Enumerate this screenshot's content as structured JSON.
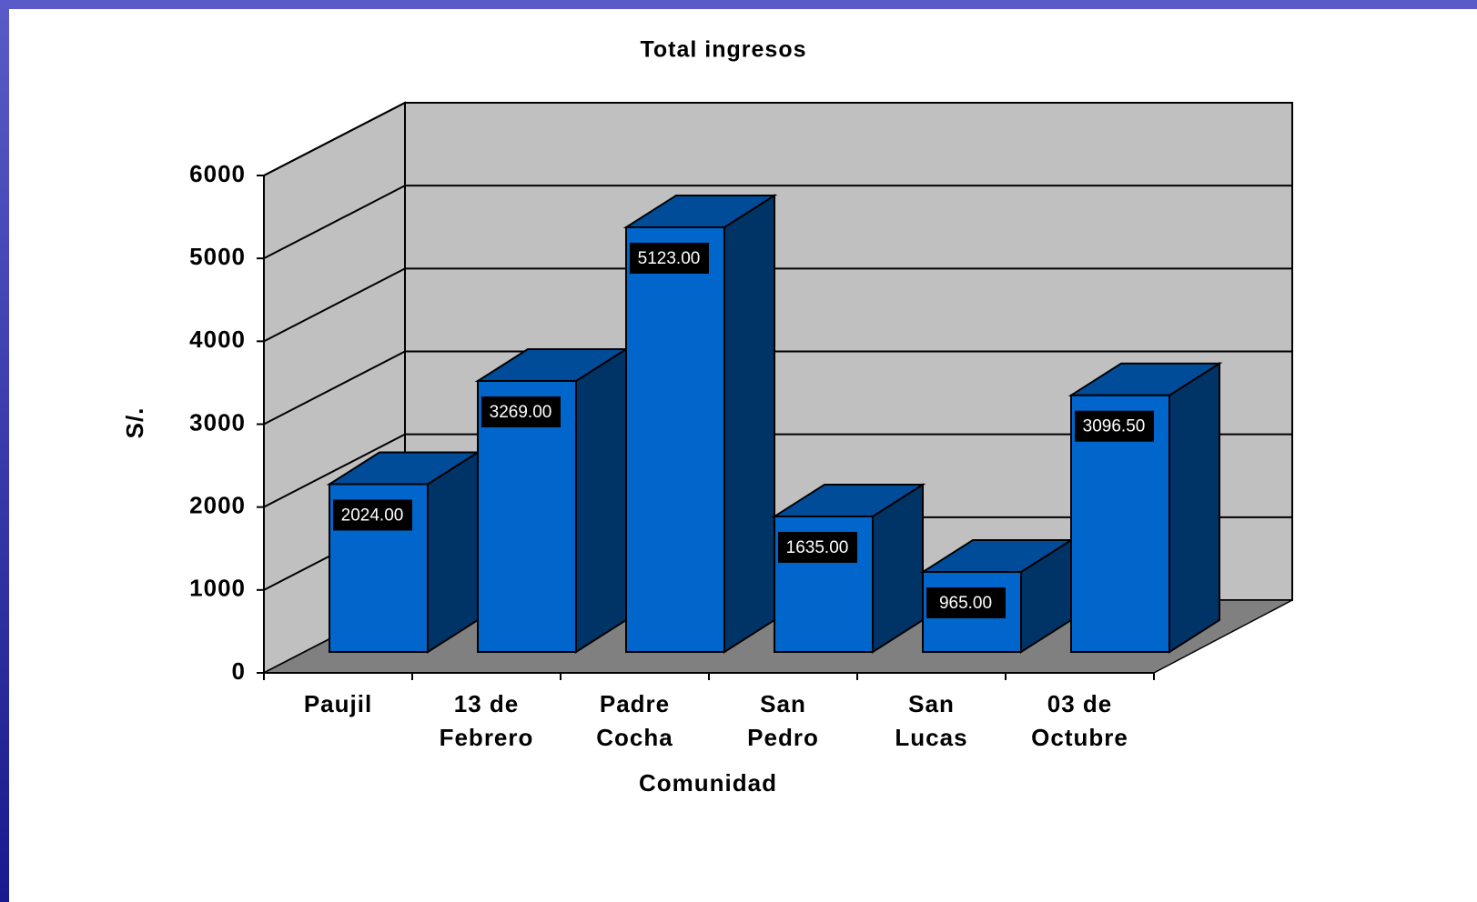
{
  "chart_data": {
    "type": "bar3d",
    "title": "Total ingresos",
    "y_label": "S/.",
    "x_label": "Comunidad",
    "categories": [
      "Paujil",
      "13 de Febrero",
      "Padre Cocha",
      "San Pedro",
      "San Lucas",
      "03 de Octubre"
    ],
    "values": [
      2024,
      3269,
      5123,
      1635,
      965,
      3096.5
    ],
    "value_labels": [
      "2024.00",
      "3269.00",
      "5123.00",
      "1635.00",
      "965.00",
      "3096.50"
    ],
    "color": "#0066cc",
    "ylim": [
      0,
      6000
    ],
    "yticks": [
      0,
      1000,
      2000,
      3000,
      4000,
      5000,
      6000
    ],
    "grid": true
  }
}
